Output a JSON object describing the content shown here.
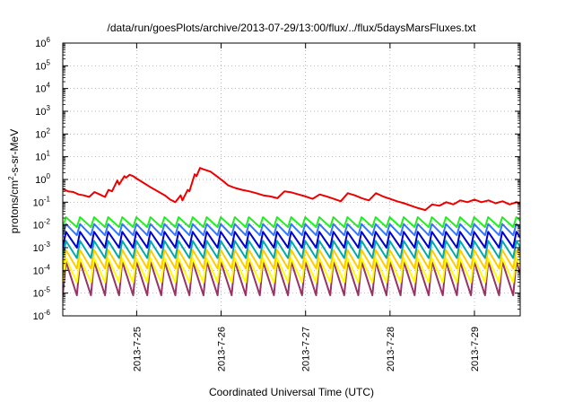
{
  "chart_data": {
    "type": "line",
    "title": "/data/run/goesPlots/archive/2013-07-29/13:00/flux/../flux/5daysMarsFluxes.txt",
    "xlabel": "Coordinated Universal Time (UTC)",
    "ylabel": {
      "prefix": "protons/cm",
      "sup": "2",
      "suffix": "-s-sr-MeV"
    },
    "y_scale": "log",
    "ylim": [
      1e-06,
      1000000.0
    ],
    "xlim": [
      "2013-07-24T03:00",
      "2013-07-29T13:00"
    ],
    "grid": true,
    "legend": "none",
    "y_ticks": [
      {
        "base": "10",
        "exp": "-6",
        "value": 1e-06
      },
      {
        "base": "10",
        "exp": "-5",
        "value": 1e-05
      },
      {
        "base": "10",
        "exp": "-4",
        "value": 0.0001
      },
      {
        "base": "10",
        "exp": "-3",
        "value": 0.001
      },
      {
        "base": "10",
        "exp": "-2",
        "value": 0.01
      },
      {
        "base": "10",
        "exp": "-1",
        "value": 0.1
      },
      {
        "base": "10",
        "exp": "0",
        "value": 1
      },
      {
        "base": "10",
        "exp": "1",
        "value": 10
      },
      {
        "base": "10",
        "exp": "2",
        "value": 100
      },
      {
        "base": "10",
        "exp": "3",
        "value": 1000
      },
      {
        "base": "10",
        "exp": "4",
        "value": 10000
      },
      {
        "base": "10",
        "exp": "5",
        "value": 100000
      },
      {
        "base": "10",
        "exp": "6",
        "value": 1000000
      }
    ],
    "x_ticks": [
      {
        "label": "2013-7-25",
        "value": "2013-07-25T00:00"
      },
      {
        "label": "2013-7-26",
        "value": "2013-07-26T00:00"
      },
      {
        "label": "2013-7-27",
        "value": "2013-07-27T00:00"
      },
      {
        "label": "2013-7-28",
        "value": "2013-07-28T00:00"
      },
      {
        "label": "2013-7-29",
        "value": "2013-07-29T00:00"
      }
    ],
    "series": [
      {
        "color": "#ee0000",
        "x": [
          "2013-07-24T03:00",
          "2013-07-24T04:30",
          "2013-07-24T06:00",
          "2013-07-24T07:30",
          "2013-07-24T09:00",
          "2013-07-24T10:30",
          "2013-07-24T12:00",
          "2013-07-24T13:30",
          "2013-07-24T14:00",
          "2013-07-24T15:00",
          "2013-07-24T16:00",
          "2013-07-24T17:00",
          "2013-07-24T18:30",
          "2013-07-24T19:00",
          "2013-07-24T20:30",
          "2013-07-24T21:00",
          "2013-07-24T22:00",
          "2013-07-24T23:00",
          "2013-07-25T00:00",
          "2013-07-25T02:00",
          "2013-07-25T04:00",
          "2013-07-25T06:00",
          "2013-07-25T08:00",
          "2013-07-25T09:30",
          "2013-07-25T11:00",
          "2013-07-25T12:30",
          "2013-07-25T13:00",
          "2013-07-25T14:30",
          "2013-07-25T15:00",
          "2013-07-25T16:30",
          "2013-07-25T17:00",
          "2013-07-25T18:00",
          "2013-07-25T19:00",
          "2013-07-25T20:00",
          "2013-07-25T21:00",
          "2013-07-25T22:00",
          "2013-07-25T23:00",
          "2013-07-26T01:00",
          "2013-07-26T02:00",
          "2013-07-26T04:00",
          "2013-07-26T06:00",
          "2013-07-26T08:00",
          "2013-07-26T10:00",
          "2013-07-26T12:00",
          "2013-07-26T14:00",
          "2013-07-26T16:00",
          "2013-07-26T18:00",
          "2013-07-26T20:00",
          "2013-07-26T22:00",
          "2013-07-27T00:00",
          "2013-07-27T02:00",
          "2013-07-27T04:00",
          "2013-07-27T06:00",
          "2013-07-27T08:00",
          "2013-07-27T10:00",
          "2013-07-27T12:00",
          "2013-07-27T14:00",
          "2013-07-27T16:00",
          "2013-07-27T18:00",
          "2013-07-27T20:00",
          "2013-07-27T22:00",
          "2013-07-28T00:00",
          "2013-07-28T02:00",
          "2013-07-28T04:00",
          "2013-07-28T06:00",
          "2013-07-28T08:00",
          "2013-07-28T10:00",
          "2013-07-28T12:00",
          "2013-07-28T14:00",
          "2013-07-28T16:00",
          "2013-07-28T18:00",
          "2013-07-28T20:00",
          "2013-07-28T22:00",
          "2013-07-29T00:00",
          "2013-07-29T02:00",
          "2013-07-29T04:00",
          "2013-07-29T06:00",
          "2013-07-29T08:00",
          "2013-07-29T10:00",
          "2013-07-29T12:00",
          "2013-07-29T13:00"
        ],
        "y": [
          0.38,
          0.3,
          0.28,
          0.22,
          0.2,
          0.17,
          0.28,
          0.22,
          0.2,
          0.17,
          0.35,
          0.3,
          0.9,
          0.6,
          1.4,
          1.2,
          1.6,
          1.4,
          1.1,
          0.7,
          0.45,
          0.3,
          0.2,
          0.13,
          0.1,
          0.2,
          0.12,
          0.35,
          0.3,
          1.7,
          1.4,
          3.2,
          2.8,
          2.5,
          2.2,
          1.7,
          1.3,
          0.75,
          0.55,
          0.42,
          0.35,
          0.3,
          0.25,
          0.2,
          0.18,
          0.15,
          0.3,
          0.27,
          0.22,
          0.18,
          0.14,
          0.22,
          0.18,
          0.14,
          0.11,
          0.25,
          0.2,
          0.15,
          0.12,
          0.25,
          0.18,
          0.14,
          0.11,
          0.09,
          0.07,
          0.055,
          0.045,
          0.08,
          0.07,
          0.1,
          0.08,
          0.12,
          0.1,
          0.13,
          0.1,
          0.12,
          0.09,
          0.11,
          0.08,
          0.1,
          0.08
        ]
      },
      {
        "color": "#22ee22",
        "wave": {
          "peak": 0.022,
          "trough": 0.008,
          "period_hours": 4
        }
      },
      {
        "color": "#3377ff",
        "wave": {
          "peak": 0.011,
          "trough": 0.0035,
          "period_hours": 4
        }
      },
      {
        "color": "#0000cc",
        "wave": {
          "peak": 0.005,
          "trough": 0.001,
          "period_hours": 4
        }
      },
      {
        "color": "#00aaaa",
        "wave": {
          "peak": 0.002,
          "trough": 0.00035,
          "period_hours": 4
        }
      },
      {
        "color": "#ffcc00",
        "wave": {
          "peak": 0.0008,
          "trough": 0.00012,
          "period_hours": 4
        }
      },
      {
        "color": "#ffff00",
        "wave": {
          "peak": 0.00035,
          "trough": 3e-05,
          "period_hours": 4
        }
      },
      {
        "color": "#993366",
        "wave": {
          "peak": 0.00025,
          "trough": 8e-06,
          "period_hours": 4
        }
      }
    ]
  }
}
